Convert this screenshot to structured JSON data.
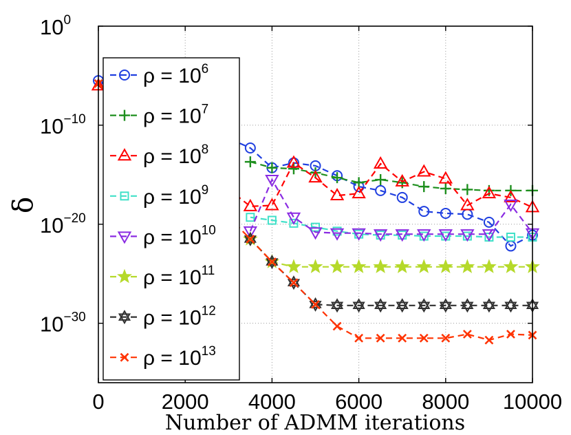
{
  "chart_data": {
    "type": "line",
    "title": "",
    "xlabel": "Number of ADMM iterations",
    "ylabel": "δ",
    "y_scale": "log",
    "xlim": [
      0,
      10000
    ],
    "ylim_exponent": [
      -36,
      0
    ],
    "x_ticks": [
      0,
      2000,
      4000,
      6000,
      8000,
      10000
    ],
    "x_tick_labels": [
      "0",
      "2000",
      "4000",
      "6000",
      "8000",
      "10000"
    ],
    "y_tick_exponents": [
      0,
      -10,
      -20,
      -30
    ],
    "y_tick_base": "10",
    "y_tick_exps": [
      "0",
      "−10",
      "−20",
      "−30"
    ],
    "grid": "dotted",
    "legend_position": "left",
    "series": [
      {
        "name": "ρ = 10^6",
        "label_base": "ρ = 10",
        "label_exp": "6",
        "color": "#1f3fe0",
        "marker": "circle",
        "x": [
          0,
          3500,
          4000,
          4500,
          5000,
          5500,
          6000,
          6500,
          7000,
          7500,
          8000,
          8500,
          9000,
          9500,
          10000
        ],
        "log10_y": [
          -5.5,
          -12.3,
          -14.3,
          -13.8,
          -14.1,
          -15.1,
          -16.2,
          -16.6,
          -17.3,
          -18.7,
          -18.9,
          -19.0,
          -19.8,
          -22.2,
          -21.1
        ]
      },
      {
        "name": "ρ = 10^7",
        "label_base": "ρ = 10",
        "label_exp": "7",
        "color": "#1e8f1e",
        "marker": "plus",
        "x": [
          3500,
          4000,
          4500,
          5000,
          5500,
          6000,
          6500,
          7000,
          7500,
          8000,
          8500,
          9000,
          9500,
          10000
        ],
        "log10_y": [
          -13.7,
          -14.3,
          -14.4,
          -14.8,
          -15.3,
          -15.8,
          -15.5,
          -15.8,
          -16.2,
          -16.4,
          -16.5,
          -16.6,
          -16.6,
          -16.6
        ]
      },
      {
        "name": "ρ = 10^8",
        "label_base": "ρ = 10",
        "label_exp": "8",
        "color": "#ff0000",
        "marker": "triangle-up",
        "x": [
          0,
          3500,
          4000,
          4500,
          5000,
          5500,
          6000,
          6500,
          7000,
          7500,
          8000,
          8500,
          9000,
          9500,
          10000
        ],
        "log10_y": [
          -6.0,
          -18.2,
          -18.1,
          -13.8,
          -15.3,
          -17.1,
          -16.9,
          -13.9,
          -15.7,
          -14.7,
          -15.4,
          -18.1,
          -16.9,
          -17.3,
          -18.3
        ]
      },
      {
        "name": "ρ = 10^9",
        "label_base": "ρ = 10",
        "label_exp": "9",
        "color": "#40e0c8",
        "marker": "square",
        "x": [
          3500,
          4000,
          4500,
          5000,
          5500,
          6000,
          6500,
          7000,
          7500,
          8000,
          8500,
          9000,
          9500,
          10000
        ],
        "log10_y": [
          -19.3,
          -19.6,
          -19.9,
          -20.3,
          -20.7,
          -21.0,
          -21.1,
          -21.1,
          -21.2,
          -21.2,
          -21.2,
          -21.3,
          -21.3,
          -21.3
        ]
      },
      {
        "name": "ρ = 10^10",
        "label_base": "ρ = 10",
        "label_exp": "10",
        "color": "#8a2be2",
        "marker": "triangle-down",
        "x": [
          3500,
          4000,
          4500,
          5000,
          5500,
          6000,
          6500,
          7000,
          7500,
          8000,
          8500,
          9000,
          9500,
          10000
        ],
        "log10_y": [
          -20.7,
          -15.5,
          -19.3,
          -20.8,
          -20.9,
          -20.9,
          -21.0,
          -21.0,
          -21.0,
          -21.0,
          -21.0,
          -21.0,
          -18.0,
          -20.9
        ]
      },
      {
        "name": "ρ = 10^11",
        "label_base": "ρ = 10",
        "label_exp": "11",
        "color": "#b5d92a",
        "marker": "star",
        "x": [
          3500,
          4000,
          4500,
          5000,
          5500,
          6000,
          6500,
          7000,
          7500,
          8000,
          8500,
          9000,
          9500,
          10000
        ],
        "log10_y": [
          -21.5,
          -23.8,
          -24.3,
          -24.3,
          -24.3,
          -24.3,
          -24.3,
          -24.3,
          -24.3,
          -24.3,
          -24.3,
          -24.3,
          -24.3,
          -24.3
        ]
      },
      {
        "name": "ρ = 10^12",
        "label_base": "ρ = 10",
        "label_exp": "12",
        "color": "#303030",
        "marker": "hexagram",
        "x": [
          3500,
          4000,
          4500,
          5000,
          5500,
          6000,
          6500,
          7000,
          7500,
          8000,
          8500,
          9000,
          9500,
          10000
        ],
        "log10_y": [
          -21.5,
          -23.8,
          -25.9,
          -28.1,
          -28.2,
          -28.2,
          -28.2,
          -28.2,
          -28.2,
          -28.2,
          -28.2,
          -28.2,
          -28.2,
          -28.2
        ]
      },
      {
        "name": "ρ = 10^13",
        "label_base": "ρ = 10",
        "label_exp": "13",
        "color": "#ff3300",
        "marker": "x",
        "x": [
          0,
          3500,
          4000,
          4500,
          5000,
          5500,
          6000,
          6500,
          7000,
          7500,
          8000,
          8500,
          9000,
          9500,
          10000
        ],
        "log10_y": [
          -5.8,
          -21.5,
          -23.8,
          -25.9,
          -28.1,
          -30.3,
          -31.5,
          -31.5,
          -31.5,
          -31.5,
          -31.5,
          -31.1,
          -31.7,
          -31.1,
          -31.2
        ]
      }
    ]
  }
}
